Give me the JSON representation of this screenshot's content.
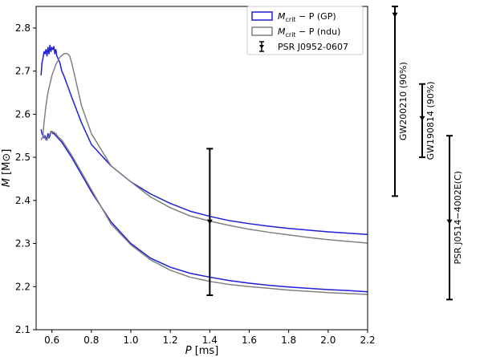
{
  "chart_data": {
    "type": "line",
    "xlabel": "P [ms]",
    "ylabel": "M [M⊙]",
    "xlim": [
      0.52,
      2.2
    ],
    "ylim": [
      2.1,
      2.85
    ],
    "xticks": [
      0.6,
      0.8,
      1.0,
      1.2,
      1.4,
      1.6,
      1.8,
      2.0,
      2.2
    ],
    "xtick_labels": [
      "0.6",
      "0.8",
      "1.0",
      "1.2",
      "1.4",
      "1.6",
      "1.8",
      "2.0",
      "2.2"
    ],
    "yticks": [
      2.1,
      2.2,
      2.3,
      2.4,
      2.5,
      2.6,
      2.7,
      2.8
    ],
    "ytick_labels": [
      "2.1",
      "2.2",
      "2.3",
      "2.4",
      "2.5",
      "2.6",
      "2.7",
      "2.8"
    ],
    "legend_position": "top-right",
    "legend": [
      {
        "label_main": "M",
        "label_sub": "crit",
        "label_rest": " − P (GP)",
        "color": "#1f1fd6",
        "kind": "line"
      },
      {
        "label_main": "M",
        "label_sub": "crit",
        "label_rest": " − P (ndu)",
        "color": "#808080",
        "kind": "line"
      },
      {
        "label_main": "",
        "label_sub": "",
        "label_rest": "PSR J0952-0607",
        "color": "#000000",
        "kind": "errorbar"
      }
    ],
    "series": [
      {
        "name": "Mcrit − P (GP) upper",
        "color": "#1f1fd6",
        "x": [
          0.545,
          0.55,
          0.555,
          0.56,
          0.565,
          0.57,
          0.575,
          0.58,
          0.585,
          0.59,
          0.595,
          0.6,
          0.605,
          0.61,
          0.615,
          0.62,
          0.625,
          0.63,
          0.635,
          0.64,
          0.65,
          0.66,
          0.68,
          0.7,
          0.75,
          0.8,
          0.9,
          1.0,
          1.1,
          1.2,
          1.3,
          1.4,
          1.5,
          1.6,
          1.7,
          1.8,
          1.9,
          2.0,
          2.1,
          2.2
        ],
        "y": [
          2.69,
          2.72,
          2.73,
          2.745,
          2.74,
          2.75,
          2.735,
          2.755,
          2.74,
          2.76,
          2.745,
          2.755,
          2.75,
          2.757,
          2.74,
          2.75,
          2.735,
          2.73,
          2.725,
          2.72,
          2.7,
          2.69,
          2.665,
          2.64,
          2.58,
          2.53,
          2.48,
          2.443,
          2.415,
          2.393,
          2.375,
          2.363,
          2.353,
          2.346,
          2.34,
          2.335,
          2.331,
          2.327,
          2.324,
          2.321
        ]
      },
      {
        "name": "Mcrit − P (GP) lower",
        "color": "#1f1fd6",
        "x": [
          0.545,
          0.55,
          0.555,
          0.56,
          0.565,
          0.57,
          0.575,
          0.58,
          0.585,
          0.59,
          0.595,
          0.6,
          0.605,
          0.61,
          0.62,
          0.63,
          0.65,
          0.7,
          0.75,
          0.8,
          0.9,
          1.0,
          1.1,
          1.2,
          1.3,
          1.4,
          1.5,
          1.6,
          1.7,
          1.8,
          1.9,
          2.0,
          2.1,
          2.2
        ],
        "y": [
          2.565,
          2.555,
          2.55,
          2.545,
          2.55,
          2.545,
          2.54,
          2.555,
          2.545,
          2.55,
          2.56,
          2.56,
          2.555,
          2.555,
          2.55,
          2.545,
          2.535,
          2.5,
          2.46,
          2.42,
          2.35,
          2.3,
          2.266,
          2.245,
          2.231,
          2.222,
          2.214,
          2.208,
          2.203,
          2.199,
          2.196,
          2.193,
          2.191,
          2.188
        ]
      },
      {
        "name": "Mcrit − P (ndu) upper",
        "color": "#808080",
        "x": [
          0.555,
          0.56,
          0.57,
          0.58,
          0.6,
          0.62,
          0.64,
          0.66,
          0.67,
          0.68,
          0.69,
          0.7,
          0.72,
          0.75,
          0.8,
          0.9,
          1.0,
          1.1,
          1.2,
          1.3,
          1.4,
          1.5,
          1.6,
          1.7,
          1.8,
          1.9,
          2.0,
          2.1,
          2.2
        ],
        "y": [
          2.55,
          2.58,
          2.62,
          2.65,
          2.69,
          2.715,
          2.732,
          2.74,
          2.741,
          2.74,
          2.735,
          2.72,
          2.68,
          2.62,
          2.555,
          2.48,
          2.443,
          2.408,
          2.383,
          2.364,
          2.352,
          2.342,
          2.333,
          2.326,
          2.32,
          2.314,
          2.309,
          2.305,
          2.301
        ]
      },
      {
        "name": "Mcrit − P (ndu) lower",
        "color": "#808080",
        "x": [
          0.545,
          0.55,
          0.56,
          0.57,
          0.58,
          0.59,
          0.6,
          0.61,
          0.62,
          0.63,
          0.65,
          0.7,
          0.75,
          0.8,
          0.9,
          1.0,
          1.1,
          1.2,
          1.3,
          1.4,
          1.5,
          1.6,
          1.7,
          1.8,
          1.9,
          2.0,
          2.1,
          2.2
        ],
        "y": [
          2.54,
          2.545,
          2.55,
          2.54,
          2.545,
          2.555,
          2.56,
          2.558,
          2.555,
          2.548,
          2.54,
          2.505,
          2.465,
          2.425,
          2.345,
          2.297,
          2.262,
          2.238,
          2.222,
          2.212,
          2.205,
          2.2,
          2.196,
          2.192,
          2.189,
          2.186,
          2.184,
          2.182
        ]
      }
    ],
    "errorbars": [
      {
        "name": "PSR J0952-0607",
        "x": 1.4,
        "y": 2.35,
        "ylow": 2.18,
        "yhigh": 2.52,
        "color": "#000000"
      }
    ],
    "side_panel": [
      {
        "label": "GW200210 (90%)",
        "y": 2.83,
        "ylow": 2.41,
        "yhigh": 2.85
      },
      {
        "label": "GW190814 (90%)",
        "y": 2.59,
        "ylow": 2.5,
        "yhigh": 2.67
      },
      {
        "label": "PSR J0514−4002E(C)",
        "y": 2.35,
        "ylow": 2.17,
        "yhigh": 2.55
      }
    ],
    "grid": false
  }
}
